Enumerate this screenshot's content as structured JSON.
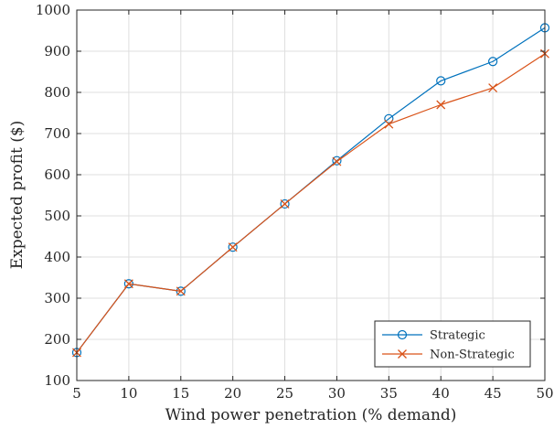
{
  "chart_data": {
    "type": "line",
    "xlabel": "Wind power penetration (% demand)",
    "ylabel": "Expected profit  ($)",
    "xlim": [
      5,
      50
    ],
    "ylim": [
      100,
      1000
    ],
    "xticks": [
      5,
      10,
      15,
      20,
      25,
      30,
      35,
      40,
      45,
      50
    ],
    "yticks": [
      100,
      200,
      300,
      400,
      500,
      600,
      700,
      800,
      900,
      1000
    ],
    "grid": true,
    "legend_position": "bottom-right",
    "x": [
      5,
      10,
      15,
      20,
      25,
      30,
      35,
      40,
      45,
      50
    ],
    "series": [
      {
        "name": "Strategic",
        "color": "#0072BD",
        "marker": "circle",
        "values": [
          168,
          335,
          317,
          424,
          529,
          634,
          736,
          828,
          875,
          957
        ]
      },
      {
        "name": "Non-Strategic",
        "color": "#D95319",
        "marker": "x",
        "values": [
          168,
          335,
          317,
          424,
          529,
          632,
          723,
          770,
          811,
          894
        ]
      }
    ]
  }
}
